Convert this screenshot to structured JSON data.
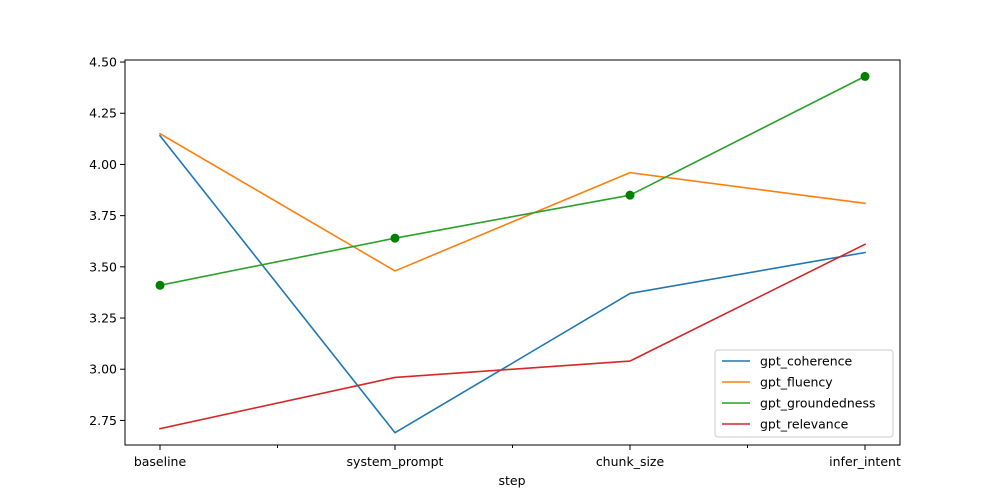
{
  "chart_data": {
    "type": "line",
    "categories": [
      "baseline",
      "system_prompt",
      "chunk_size",
      "infer_intent"
    ],
    "xlabel": "step",
    "ylabel": "",
    "title": "",
    "ylim": [
      2.63,
      4.51
    ],
    "yticks": [
      2.75,
      3.0,
      3.25,
      3.5,
      3.75,
      4.0,
      4.25,
      4.5
    ],
    "ytick_labels": [
      "2.75",
      "3.00",
      "3.25",
      "3.50",
      "3.75",
      "4.00",
      "4.25",
      "4.50"
    ],
    "grid": false,
    "legend_position": "lower-right",
    "series": [
      {
        "name": "gpt_coherence",
        "color": "#1f77b4",
        "values": [
          4.14,
          2.69,
          3.37,
          3.57
        ],
        "markers": false
      },
      {
        "name": "gpt_fluency",
        "color": "#ff7f0e",
        "values": [
          4.15,
          3.48,
          3.96,
          3.81
        ],
        "markers": false
      },
      {
        "name": "gpt_groundedness",
        "color": "#2ca02c",
        "values": [
          3.41,
          3.64,
          3.85,
          4.43
        ],
        "markers": true,
        "marker_color": "#008000"
      },
      {
        "name": "gpt_relevance",
        "color": "#d62728",
        "values": [
          2.71,
          2.96,
          3.04,
          3.61
        ],
        "markers": false
      }
    ]
  }
}
